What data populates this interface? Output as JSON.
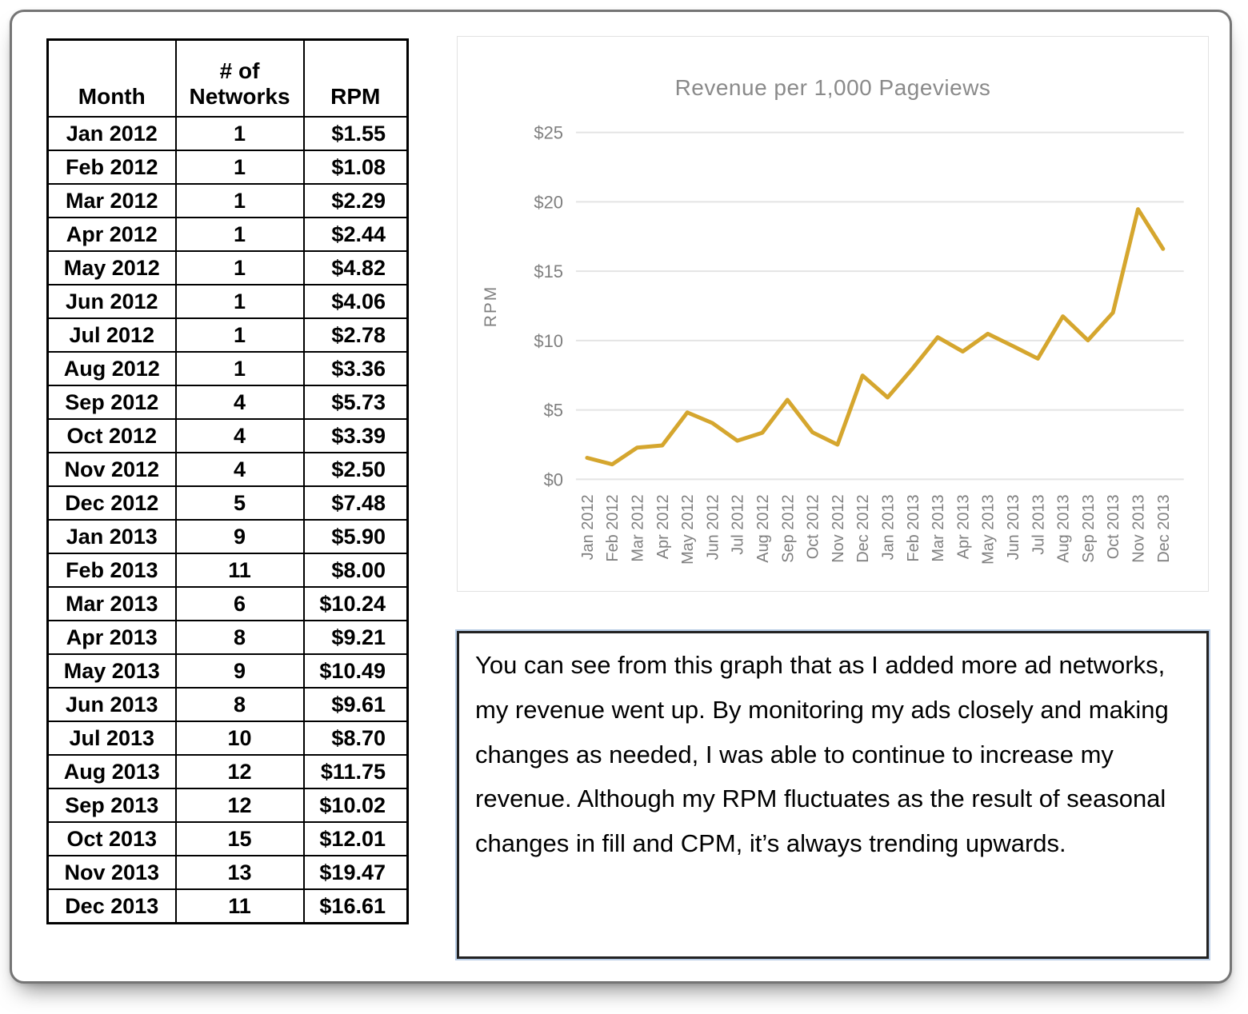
{
  "table": {
    "headers": [
      "Month",
      "# of\nNetworks",
      "RPM"
    ],
    "rows": [
      {
        "month": "Jan 2012",
        "networks": "1",
        "rpm": "$1.55"
      },
      {
        "month": "Feb 2012",
        "networks": "1",
        "rpm": "$1.08"
      },
      {
        "month": "Mar 2012",
        "networks": "1",
        "rpm": "$2.29"
      },
      {
        "month": "Apr 2012",
        "networks": "1",
        "rpm": "$2.44"
      },
      {
        "month": "May 2012",
        "networks": "1",
        "rpm": "$4.82"
      },
      {
        "month": "Jun 2012",
        "networks": "1",
        "rpm": "$4.06"
      },
      {
        "month": "Jul 2012",
        "networks": "1",
        "rpm": "$2.78"
      },
      {
        "month": "Aug 2012",
        "networks": "1",
        "rpm": "$3.36"
      },
      {
        "month": "Sep 2012",
        "networks": "4",
        "rpm": "$5.73"
      },
      {
        "month": "Oct 2012",
        "networks": "4",
        "rpm": "$3.39"
      },
      {
        "month": "Nov 2012",
        "networks": "4",
        "rpm": "$2.50"
      },
      {
        "month": "Dec 2012",
        "networks": "5",
        "rpm": "$7.48"
      },
      {
        "month": "Jan 2013",
        "networks": "9",
        "rpm": "$5.90"
      },
      {
        "month": "Feb 2013",
        "networks": "11",
        "rpm": "$8.00"
      },
      {
        "month": "Mar 2013",
        "networks": "6",
        "rpm": "$10.24"
      },
      {
        "month": "Apr 2013",
        "networks": "8",
        "rpm": "$9.21"
      },
      {
        "month": "May 2013",
        "networks": "9",
        "rpm": "$10.49"
      },
      {
        "month": "Jun 2013",
        "networks": "8",
        "rpm": "$9.61"
      },
      {
        "month": "Jul 2013",
        "networks": "10",
        "rpm": "$8.70"
      },
      {
        "month": "Aug 2013",
        "networks": "12",
        "rpm": "$11.75"
      },
      {
        "month": "Sep 2013",
        "networks": "12",
        "rpm": "$10.02"
      },
      {
        "month": "Oct 2013",
        "networks": "15",
        "rpm": "$12.01"
      },
      {
        "month": "Nov 2013",
        "networks": "13",
        "rpm": "$19.47"
      },
      {
        "month": "Dec 2013",
        "networks": "11",
        "rpm": "$16.61"
      }
    ]
  },
  "chart_data": {
    "type": "line",
    "title": "Revenue per 1,000 Pageviews",
    "xlabel": "",
    "ylabel": "RPM",
    "x": [
      "Jan 2012",
      "Feb 2012",
      "Mar 2012",
      "Apr 2012",
      "May 2012",
      "Jun 2012",
      "Jul 2012",
      "Aug 2012",
      "Sep 2012",
      "Oct 2012",
      "Nov 2012",
      "Dec 2012",
      "Jan 2013",
      "Feb 2013",
      "Mar 2013",
      "Apr 2013",
      "May 2013",
      "Jun 2013",
      "Jul 2013",
      "Aug 2013",
      "Sep 2013",
      "Oct 2013",
      "Nov 2013",
      "Dec 2013"
    ],
    "values": [
      1.55,
      1.08,
      2.29,
      2.44,
      4.82,
      4.06,
      2.78,
      3.36,
      5.73,
      3.39,
      2.5,
      7.48,
      5.9,
      8.0,
      10.24,
      9.21,
      10.49,
      9.61,
      8.7,
      11.75,
      10.02,
      12.01,
      19.47,
      16.61
    ],
    "ylim": [
      0,
      25
    ],
    "y_ticks": [
      0,
      5,
      10,
      15,
      20,
      25
    ],
    "y_tick_labels": [
      "$0",
      "$5",
      "$10",
      "$15",
      "$20",
      "$25"
    ],
    "grid": true,
    "legend": "none",
    "line_color": "#D5A62E",
    "grid_color": "#e4e4e4",
    "axis_text_color": "#7f7f7f",
    "title_color": "#8a8a8a"
  },
  "note": {
    "text": "You can see from this graph that as I added more ad networks, my revenue went up. By monitoring my ads closely and making changes as needed, I was able to continue to increase my revenue. Although my RPM fluctuates as the result of seasonal changes in fill and CPM, it’s always trending upwards."
  }
}
